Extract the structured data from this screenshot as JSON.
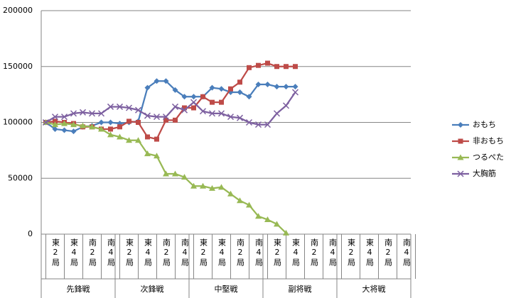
{
  "chart_data": {
    "type": "line",
    "categories": [
      null,
      "東2局",
      null,
      "東4局",
      null,
      "南2局",
      null,
      "南4局",
      null,
      "東2局",
      null,
      "東4局",
      null,
      "南2局",
      null,
      "南4局",
      null,
      "東2局",
      null,
      "東4局",
      null,
      "南2局",
      null,
      "南4局",
      null,
      "東2局",
      null,
      "東4局",
      null,
      "南2局",
      null,
      "南4局",
      null,
      "東2局",
      null,
      "東4局",
      null,
      "南2局",
      null,
      "南4局"
    ],
    "groups": [
      "先鋒戦",
      "次鋒戦",
      "中堅戦",
      "副将戦",
      "大将戦"
    ],
    "ylim": [
      0,
      200000
    ],
    "yticks": [
      0,
      50000,
      100000,
      150000,
      200000
    ],
    "grid": true,
    "legend": "right",
    "series": [
      {
        "name": "おもち",
        "color": "#4a7ebb",
        "marker": "diamond",
        "values": [
          100000,
          94000,
          93000,
          92000,
          96000,
          97000,
          100000,
          100000,
          99000,
          100000,
          101000,
          131000,
          137000,
          137000,
          129000,
          123000,
          123000,
          123000,
          131000,
          130000,
          127000,
          127000,
          123000,
          134000,
          134000,
          132000,
          132000,
          132000,
          null,
          null,
          null,
          null,
          null,
          null,
          null,
          null,
          null,
          null,
          null,
          null
        ]
      },
      {
        "name": "非おもち",
        "color": "#be4b48",
        "marker": "square",
        "values": [
          100000,
          101000,
          100000,
          99000,
          96000,
          96000,
          94000,
          94000,
          96000,
          101000,
          100000,
          87000,
          85000,
          102000,
          102000,
          113000,
          113000,
          123000,
          118000,
          118000,
          130000,
          136000,
          149000,
          151000,
          153000,
          150000,
          150000,
          150000,
          null,
          null,
          null,
          null,
          null,
          null,
          null,
          null,
          null,
          null,
          null,
          null
        ]
      },
      {
        "name": "つるぺた",
        "color": "#98b954",
        "marker": "triangle",
        "values": [
          100000,
          98000,
          99000,
          98000,
          97000,
          96000,
          94000,
          89000,
          87000,
          84000,
          84000,
          72000,
          70000,
          54000,
          54000,
          51000,
          43000,
          43000,
          41000,
          42000,
          36000,
          30000,
          26000,
          16000,
          13000,
          9000,
          1000,
          null,
          null,
          null,
          null,
          null,
          null,
          null,
          null,
          null,
          null,
          null,
          null,
          null
        ]
      },
      {
        "name": "大胸筋",
        "color": "#7d60a0",
        "marker": "x",
        "values": [
          100000,
          105000,
          105000,
          108000,
          109000,
          108000,
          108000,
          114000,
          114000,
          113000,
          111000,
          106000,
          105000,
          105000,
          114000,
          111000,
          118000,
          110000,
          108000,
          108000,
          105000,
          104000,
          100000,
          98000,
          98000,
          108000,
          115000,
          127000,
          null,
          null,
          null,
          null,
          null,
          null,
          null,
          null,
          null,
          null,
          null,
          null
        ]
      }
    ]
  }
}
